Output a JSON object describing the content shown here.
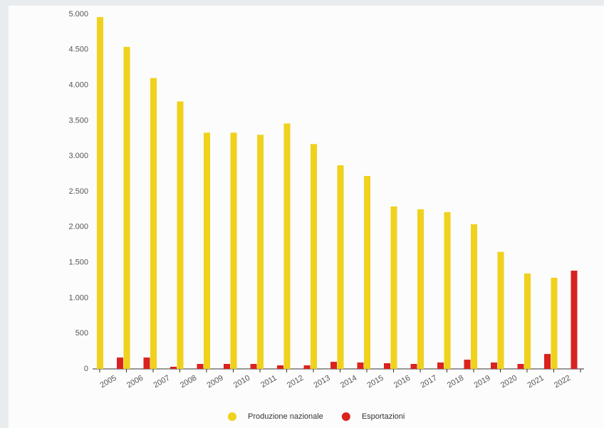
{
  "chart_data": {
    "type": "bar",
    "categories": [
      "2005",
      "2006",
      "2007",
      "2008",
      "2009",
      "2010",
      "2011",
      "2012",
      "2013",
      "2014",
      "2015",
      "2016",
      "2017",
      "2018",
      "2019",
      "2020",
      "2021",
      "2022"
    ],
    "series": [
      {
        "name": "Produzione nazionale",
        "color": "#f0d11c",
        "values": [
          4960,
          4540,
          4100,
          3770,
          3330,
          3330,
          3300,
          3460,
          3170,
          2870,
          2720,
          2290,
          2250,
          2210,
          2040,
          1650,
          1345,
          1285
        ]
      },
      {
        "name": "Esportazioni",
        "color": "#d8231f",
        "values": [
          160,
          160,
          30,
          70,
          70,
          70,
          50,
          50,
          100,
          90,
          80,
          70,
          90,
          130,
          90,
          70,
          210,
          1385
        ]
      }
    ],
    "ylim": [
      0,
      5000
    ],
    "yticks": [
      0,
      500,
      {
        "value": 1000,
        "label": "1.000"
      },
      {
        "value": 1500,
        "label": "1.500"
      },
      {
        "value": 2000,
        "label": "2.000"
      },
      {
        "value": 2500,
        "label": "2.500"
      },
      {
        "value": 3000,
        "label": "3.000"
      },
      {
        "value": 3500,
        "label": "3.500"
      },
      {
        "value": 4000,
        "label": "4.000"
      },
      {
        "value": 4500,
        "label": "4.500"
      },
      {
        "value": 5000,
        "label": "5.000"
      }
    ],
    "grid": false
  }
}
